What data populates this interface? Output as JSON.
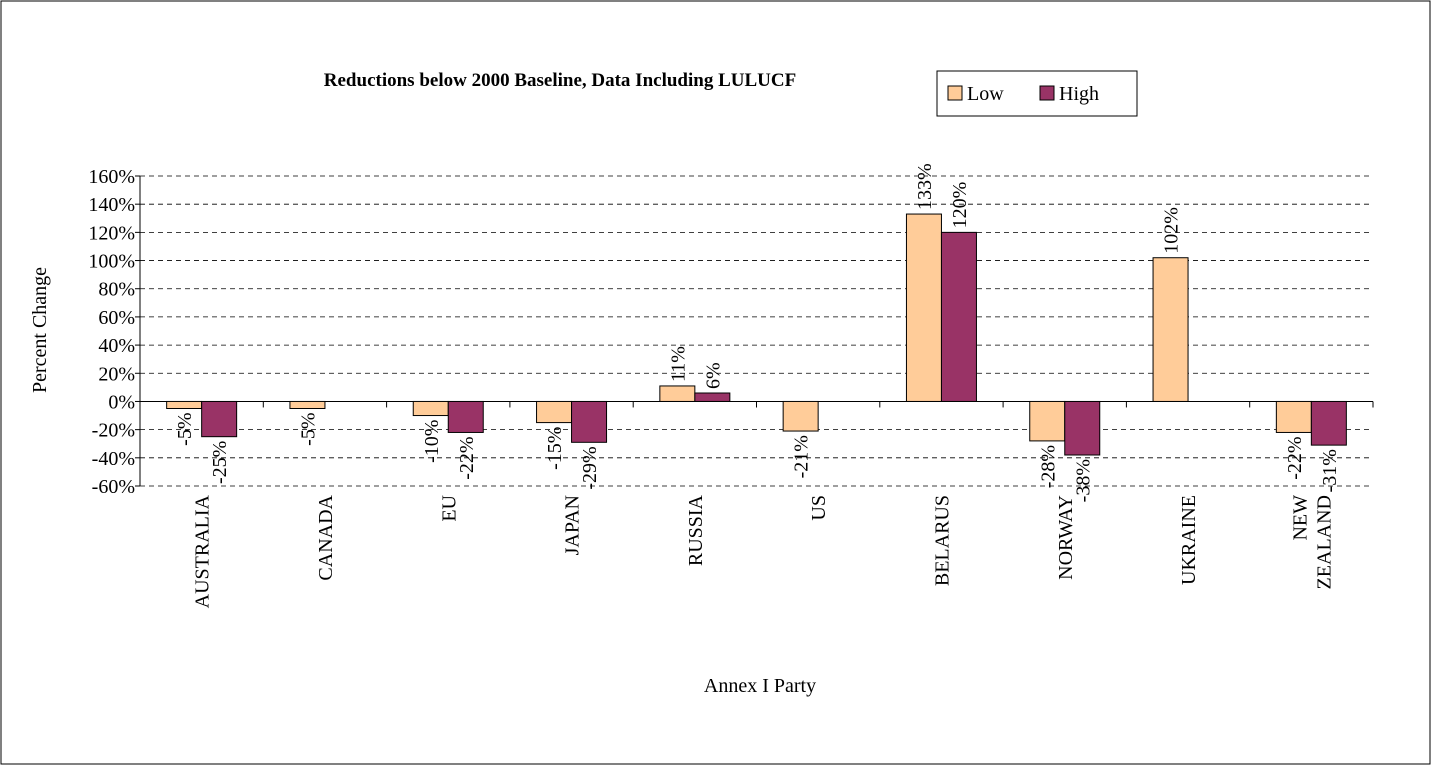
{
  "chart_data": {
    "type": "bar",
    "title": "Reductions below 2000 Baseline, Data Including LULUCF",
    "x_label": "Annex I Party",
    "y_label": "Percent Change",
    "categories": [
      "AUSTRALIA",
      "CANADA",
      "EU",
      "JAPAN",
      "RUSSIA",
      "US",
      "BELARUS",
      "NORWAY",
      "UKRAINE",
      "NEW ZEALAND"
    ],
    "series": [
      {
        "name": "Low",
        "color": "#ffcc99",
        "values": [
          -5,
          -5,
          -10,
          -15,
          11,
          -21,
          133,
          -28,
          102,
          -22
        ],
        "value_labels": [
          "-5%",
          "-5%",
          "-10%",
          "-15%",
          "11%",
          "-21%",
          "133%",
          "-28%",
          "102%",
          "-22%"
        ]
      },
      {
        "name": "High",
        "color": "#993366",
        "values": [
          -25,
          null,
          -22,
          -29,
          6,
          null,
          120,
          -38,
          null,
          -31
        ],
        "value_labels": [
          "-25%",
          null,
          "-22%",
          "-29%",
          "6%",
          null,
          "120%",
          "-38%",
          null,
          "-31%"
        ]
      }
    ],
    "ylim": [
      -60,
      160
    ],
    "yticks": [
      {
        "value": -60,
        "label": "-60%"
      },
      {
        "value": -40,
        "label": "-40%"
      },
      {
        "value": -20,
        "label": "-20%"
      },
      {
        "value": 0,
        "label": "0%"
      },
      {
        "value": 20,
        "label": "20%"
      },
      {
        "value": 40,
        "label": "40%"
      },
      {
        "value": 60,
        "label": "60%"
      },
      {
        "value": 80,
        "label": "80%"
      },
      {
        "value": 100,
        "label": "100%"
      },
      {
        "value": 120,
        "label": "120%"
      },
      {
        "value": 140,
        "label": "140%"
      },
      {
        "value": 160,
        "label": "160%"
      }
    ],
    "grid": true,
    "legend": "top-right"
  }
}
